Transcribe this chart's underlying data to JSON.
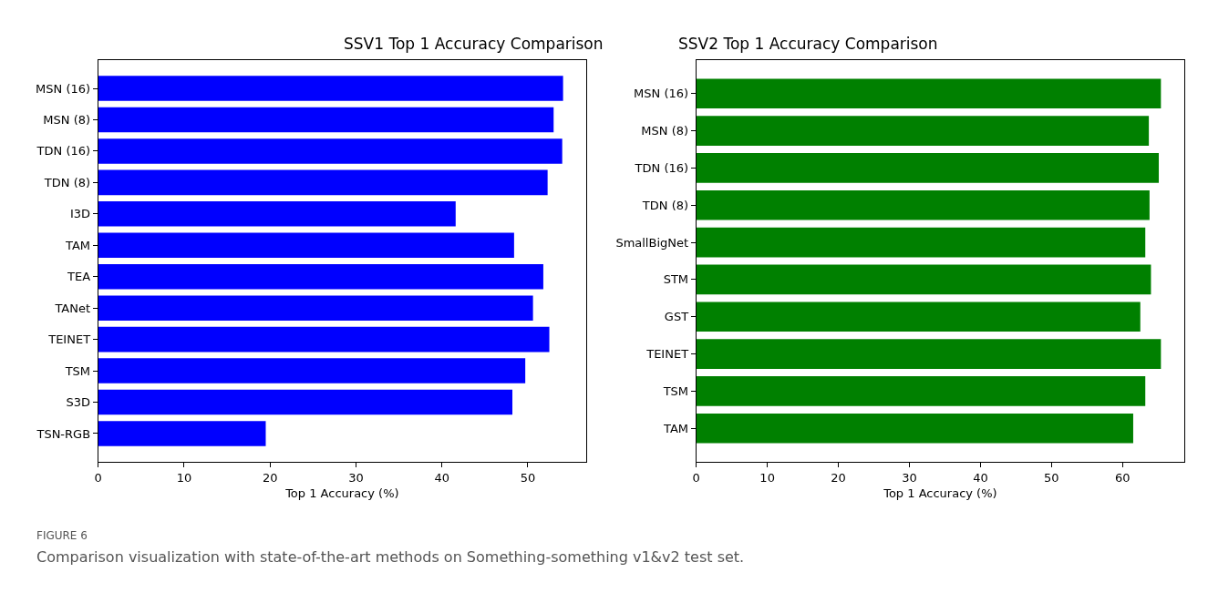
{
  "chart_data": [
    {
      "type": "bar",
      "orientation": "horizontal",
      "title": "SSV1 Top 1 Accuracy Comparison",
      "xlabel": "Top 1 Accuracy (%)",
      "categories": [
        "MSN (16)",
        "MSN (8)",
        "TDN (16)",
        "TDN (8)",
        "I3D",
        "TAM",
        "TEA",
        "TANet",
        "TEINET",
        "TSM",
        "S3D",
        "TSN-RGB"
      ],
      "values": [
        54.1,
        53.0,
        54.0,
        52.3,
        41.6,
        48.4,
        51.8,
        50.6,
        52.5,
        49.7,
        48.2,
        19.5
      ],
      "color": "#0000ff",
      "xlim": [
        0,
        56.8
      ],
      "xticks": [
        0,
        10,
        20,
        30,
        40,
        50
      ],
      "annotations": [
        "FIGURE 6",
        "Comparison visualization with state-of-the-art methods on Something-something v1&v2 test set."
      ]
    },
    {
      "type": "bar",
      "orientation": "horizontal",
      "title": "SSV2 Top 1 Accuracy Comparison",
      "xlabel": "Top 1 Accuracy (%)",
      "categories": [
        "MSN (16)",
        "MSN (8)",
        "TDN (16)",
        "TDN (8)",
        "SmallBigNet",
        "STM",
        "GST",
        "TEINET",
        "TSM",
        "TAM"
      ],
      "values": [
        65.4,
        63.7,
        65.1,
        63.8,
        63.2,
        64.0,
        62.5,
        65.4,
        63.2,
        61.5
      ],
      "color": "#008000",
      "xlim": [
        0,
        68.7
      ],
      "xticks": [
        0,
        10,
        20,
        30,
        40,
        50,
        60
      ]
    }
  ]
}
